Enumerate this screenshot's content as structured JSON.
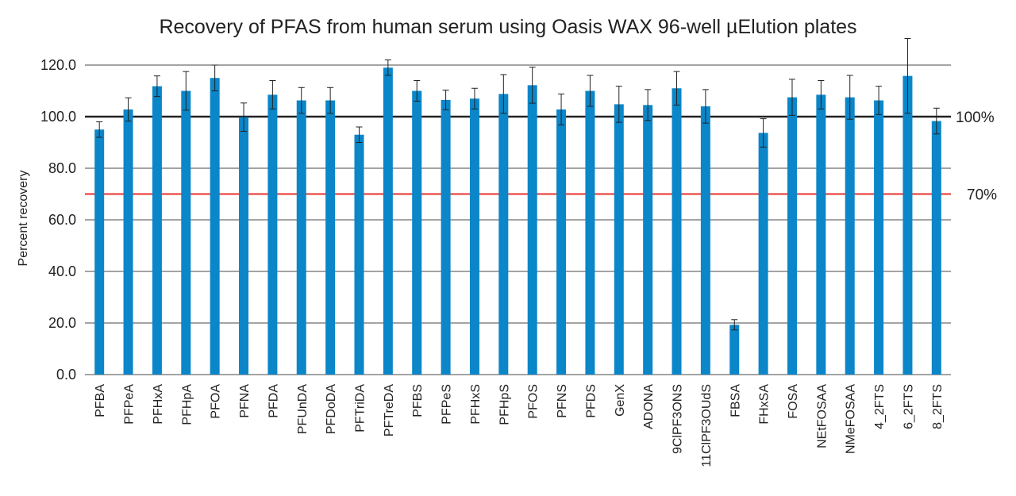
{
  "chart_data": {
    "type": "bar",
    "title": "Recovery of PFAS from human serum using Oasis WAX 96-well µElution plates",
    "ylabel": "Percent recovery",
    "xlabel": "",
    "ylim": [
      0,
      120
    ],
    "yticks": [
      "0.0",
      "20.0",
      "40.0",
      "60.0",
      "80.0",
      "100.0",
      "120.0"
    ],
    "grid": true,
    "categories": [
      "PFBA",
      "PFPeA",
      "PFHxA",
      "PFHpA",
      "PFOA",
      "PFNA",
      "PFDA",
      "PFUnDA",
      "PFDoDA",
      "PFTriDA",
      "PFTreDA",
      "PFBS",
      "PFPeS",
      "PFHxS",
      "PFHpS",
      "PFOS",
      "PFNS",
      "PFDS",
      "GenX",
      "ADONA",
      "9ClPF3ONS",
      "11ClPF3OUdS",
      "FBSA",
      "FHxSA",
      "FOSA",
      "NEtFOSAA",
      "NMeFOSAA",
      "4_2FTS",
      "6_2FTS",
      "8_2FTS"
    ],
    "values": [
      95.0,
      102.8,
      111.8,
      110.0,
      115.0,
      99.8,
      108.5,
      106.3,
      106.3,
      93.0,
      119.0,
      110.0,
      106.5,
      107.0,
      108.8,
      112.2,
      102.8,
      110.0,
      104.8,
      104.5,
      111.0,
      104.0,
      19.3,
      93.7,
      107.5,
      108.5,
      107.5,
      106.3,
      115.8,
      98.3
    ],
    "errors": [
      3.0,
      4.5,
      4.0,
      7.5,
      5.0,
      5.5,
      5.5,
      5.0,
      5.0,
      3.0,
      3.0,
      4.0,
      3.8,
      4.0,
      7.5,
      7.0,
      6.0,
      6.0,
      7.0,
      6.0,
      6.5,
      6.5,
      2.0,
      5.5,
      7.0,
      5.5,
      8.5,
      5.5,
      14.5,
      5.0
    ],
    "reference_lines": [
      {
        "value": 100,
        "label": "100%",
        "color": "#222222"
      },
      {
        "value": 70,
        "label": "70%",
        "color": "#e8322e"
      }
    ],
    "bar_color": "#0a86c9"
  }
}
